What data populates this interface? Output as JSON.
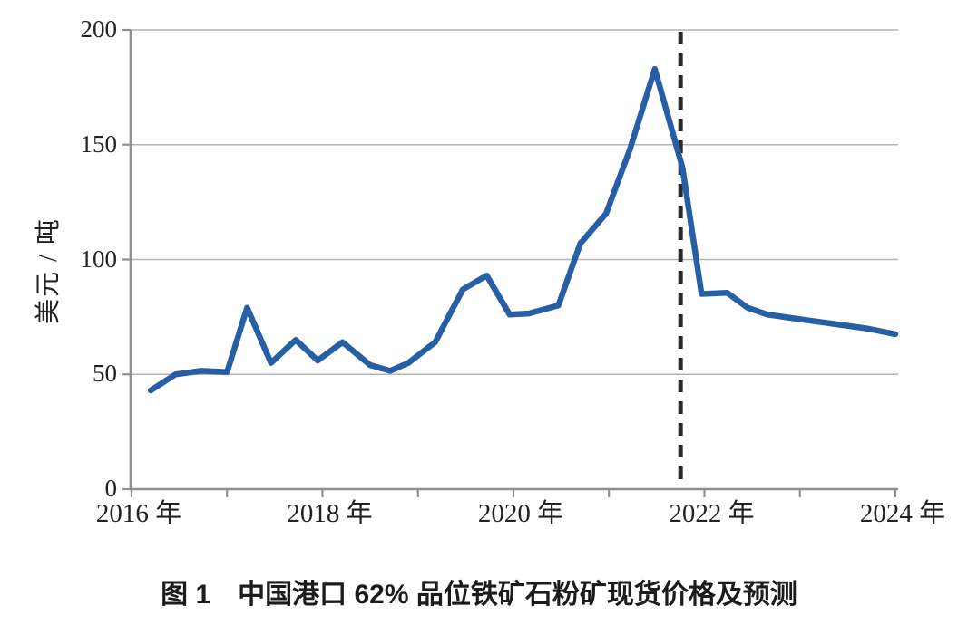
{
  "figure": {
    "caption": "图 1　中国港口 62% 品位铁矿石粉矿现货价格及预测",
    "y_axis_title": "美元 / 吨"
  },
  "colors": {
    "line": "#275fa6",
    "forecast_divider": "#2b2b2b",
    "grid": "#b3b3b3",
    "axis": "#8f8f8f",
    "text": "#222222"
  },
  "chart_data": {
    "type": "line",
    "title": "图 1 中国港口 62% 品位铁矿石粉矿现货价格及预测",
    "xlabel": "",
    "ylabel": "美元 / 吨",
    "xlim": [
      2016,
      2024
    ],
    "ylim": [
      0,
      200
    ],
    "x_ticks": [
      2016,
      2017,
      2018,
      2019,
      2020,
      2021,
      2022,
      2023,
      2024
    ],
    "x_tick_labels": [
      {
        "year": 2016,
        "label": "2016 年"
      },
      {
        "year": 2018,
        "label": "2018 年"
      },
      {
        "year": 2020,
        "label": "2020 年"
      },
      {
        "year": 2022,
        "label": "2022 年"
      },
      {
        "year": 2024,
        "label": "2024 年"
      }
    ],
    "y_ticks": [
      0,
      50,
      100,
      150,
      200
    ],
    "y_tick_labels": [
      "0",
      "50",
      "100",
      "150",
      "200"
    ],
    "grid": "horizontal",
    "legend": "none",
    "forecast_divider_x": 2021.75,
    "series": [
      {
        "name": "中国港口 62% 品位铁矿石粉矿现货价格及预测",
        "style": "solid",
        "points": [
          [
            2016.2,
            43
          ],
          [
            2016.46,
            50
          ],
          [
            2016.73,
            51.5
          ],
          [
            2017.0,
            51
          ],
          [
            2017.21,
            79
          ],
          [
            2017.46,
            55
          ],
          [
            2017.72,
            65
          ],
          [
            2017.95,
            56
          ],
          [
            2018.21,
            64
          ],
          [
            2018.5,
            54
          ],
          [
            2018.71,
            51.5
          ],
          [
            2018.9,
            55
          ],
          [
            2019.18,
            64
          ],
          [
            2019.47,
            87
          ],
          [
            2019.72,
            93
          ],
          [
            2019.96,
            76
          ],
          [
            2020.16,
            76.5
          ],
          [
            2020.47,
            80
          ],
          [
            2020.7,
            107
          ],
          [
            2020.97,
            120
          ],
          [
            2021.22,
            148
          ],
          [
            2021.48,
            183
          ],
          [
            2021.77,
            140
          ],
          [
            2021.97,
            85
          ],
          [
            2022.24,
            85.5
          ],
          [
            2022.45,
            79
          ],
          [
            2022.66,
            76
          ],
          [
            2023.0,
            74
          ],
          [
            2023.35,
            72
          ],
          [
            2023.7,
            70
          ],
          [
            2024.0,
            67.5
          ]
        ]
      }
    ]
  }
}
